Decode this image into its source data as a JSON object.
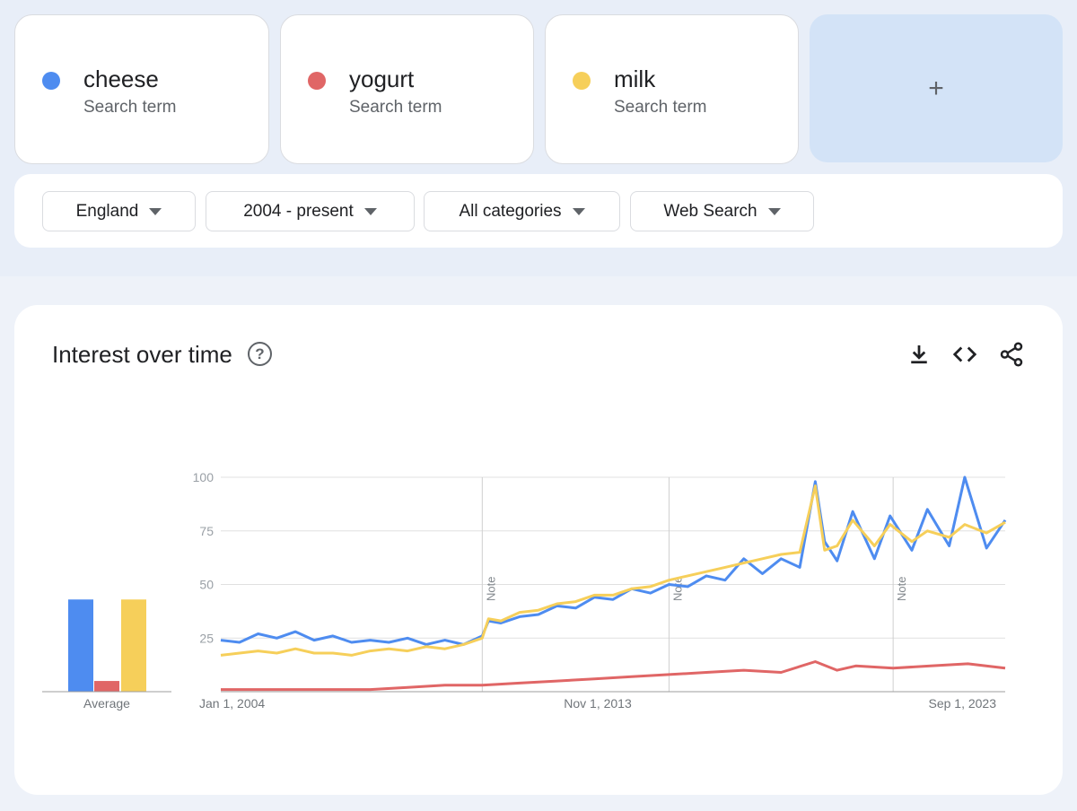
{
  "terms": [
    {
      "name": "cheese",
      "sub": "Search term",
      "color": "#4e8cf0"
    },
    {
      "name": "yogurt",
      "sub": "Search term",
      "color": "#e06666"
    },
    {
      "name": "milk",
      "sub": "Search term",
      "color": "#f6cf5a"
    }
  ],
  "add_label": "+",
  "filters": {
    "region": "England",
    "time": "2004 - present",
    "category": "All categories",
    "property": "Web Search"
  },
  "panel": {
    "title": "Interest over time",
    "help_glyph": "?",
    "icons": [
      "download-icon",
      "embed-icon",
      "share-icon"
    ]
  },
  "chart_data": {
    "type": "line",
    "ylim": [
      0,
      100
    ],
    "yticks": [
      25,
      50,
      75,
      100
    ],
    "x_range": [
      "2004-01",
      "2025-01"
    ],
    "xtick_labels": [
      "Jan 1, 2004",
      "Nov 1, 2013",
      "Sep 1, 2023"
    ],
    "notes": [
      {
        "label": "Note",
        "date": "2011-01"
      },
      {
        "label": "Note",
        "date": "2016-01"
      },
      {
        "label": "Note",
        "date": "2022-01"
      }
    ],
    "average": {
      "label": "Average",
      "values": [
        {
          "name": "cheese",
          "value": 43
        },
        {
          "name": "yogurt",
          "value": 5
        },
        {
          "name": "milk",
          "value": 43
        }
      ]
    },
    "series": [
      {
        "name": "cheese",
        "color": "#4e8cf0",
        "points": [
          [
            "2004-01",
            24
          ],
          [
            "2004-07",
            23
          ],
          [
            "2005-01",
            27
          ],
          [
            "2005-07",
            25
          ],
          [
            "2006-01",
            28
          ],
          [
            "2006-07",
            24
          ],
          [
            "2007-01",
            26
          ],
          [
            "2007-07",
            23
          ],
          [
            "2008-01",
            24
          ],
          [
            "2008-07",
            23
          ],
          [
            "2009-01",
            25
          ],
          [
            "2009-07",
            22
          ],
          [
            "2010-01",
            24
          ],
          [
            "2010-07",
            22
          ],
          [
            "2011-01",
            26
          ],
          [
            "2011-03",
            33
          ],
          [
            "2011-07",
            32
          ],
          [
            "2012-01",
            35
          ],
          [
            "2012-07",
            36
          ],
          [
            "2013-01",
            40
          ],
          [
            "2013-07",
            39
          ],
          [
            "2014-01",
            44
          ],
          [
            "2014-07",
            43
          ],
          [
            "2015-01",
            48
          ],
          [
            "2015-07",
            46
          ],
          [
            "2016-01",
            50
          ],
          [
            "2016-07",
            49
          ],
          [
            "2017-01",
            54
          ],
          [
            "2017-07",
            52
          ],
          [
            "2018-01",
            62
          ],
          [
            "2018-07",
            55
          ],
          [
            "2019-01",
            62
          ],
          [
            "2019-07",
            58
          ],
          [
            "2019-12",
            98
          ],
          [
            "2020-03",
            70
          ],
          [
            "2020-07",
            61
          ],
          [
            "2020-12",
            84
          ],
          [
            "2021-07",
            62
          ],
          [
            "2021-12",
            82
          ],
          [
            "2022-07",
            66
          ],
          [
            "2022-12",
            85
          ],
          [
            "2023-07",
            68
          ],
          [
            "2023-12",
            100
          ],
          [
            "2024-07",
            67
          ],
          [
            "2025-01",
            80
          ]
        ]
      },
      {
        "name": "yogurt",
        "color": "#e06666",
        "points": [
          [
            "2004-01",
            1
          ],
          [
            "2006-01",
            1
          ],
          [
            "2008-01",
            1
          ],
          [
            "2009-01",
            2
          ],
          [
            "2010-01",
            3
          ],
          [
            "2011-01",
            3
          ],
          [
            "2012-01",
            4
          ],
          [
            "2013-01",
            5
          ],
          [
            "2014-01",
            6
          ],
          [
            "2015-01",
            7
          ],
          [
            "2016-01",
            8
          ],
          [
            "2017-01",
            9
          ],
          [
            "2018-01",
            10
          ],
          [
            "2019-01",
            9
          ],
          [
            "2019-12",
            14
          ],
          [
            "2020-07",
            10
          ],
          [
            "2021-01",
            12
          ],
          [
            "2022-01",
            11
          ],
          [
            "2023-01",
            12
          ],
          [
            "2024-01",
            13
          ],
          [
            "2025-01",
            11
          ]
        ]
      },
      {
        "name": "milk",
        "color": "#f6cf5a",
        "points": [
          [
            "2004-01",
            17
          ],
          [
            "2004-07",
            18
          ],
          [
            "2005-01",
            19
          ],
          [
            "2005-07",
            18
          ],
          [
            "2006-01",
            20
          ],
          [
            "2006-07",
            18
          ],
          [
            "2007-01",
            18
          ],
          [
            "2007-07",
            17
          ],
          [
            "2008-01",
            19
          ],
          [
            "2008-07",
            20
          ],
          [
            "2009-01",
            19
          ],
          [
            "2009-07",
            21
          ],
          [
            "2010-01",
            20
          ],
          [
            "2010-07",
            22
          ],
          [
            "2011-01",
            25
          ],
          [
            "2011-03",
            34
          ],
          [
            "2011-07",
            33
          ],
          [
            "2012-01",
            37
          ],
          [
            "2012-07",
            38
          ],
          [
            "2013-01",
            41
          ],
          [
            "2013-07",
            42
          ],
          [
            "2014-01",
            45
          ],
          [
            "2014-07",
            45
          ],
          [
            "2015-01",
            48
          ],
          [
            "2015-07",
            49
          ],
          [
            "2016-01",
            52
          ],
          [
            "2016-07",
            54
          ],
          [
            "2017-01",
            56
          ],
          [
            "2017-07",
            58
          ],
          [
            "2018-01",
            60
          ],
          [
            "2018-07",
            62
          ],
          [
            "2019-01",
            64
          ],
          [
            "2019-07",
            65
          ],
          [
            "2019-12",
            96
          ],
          [
            "2020-03",
            66
          ],
          [
            "2020-07",
            68
          ],
          [
            "2020-12",
            80
          ],
          [
            "2021-07",
            68
          ],
          [
            "2021-12",
            78
          ],
          [
            "2022-07",
            70
          ],
          [
            "2022-12",
            75
          ],
          [
            "2023-07",
            72
          ],
          [
            "2023-12",
            78
          ],
          [
            "2024-07",
            74
          ],
          [
            "2025-01",
            79
          ]
        ]
      }
    ]
  }
}
